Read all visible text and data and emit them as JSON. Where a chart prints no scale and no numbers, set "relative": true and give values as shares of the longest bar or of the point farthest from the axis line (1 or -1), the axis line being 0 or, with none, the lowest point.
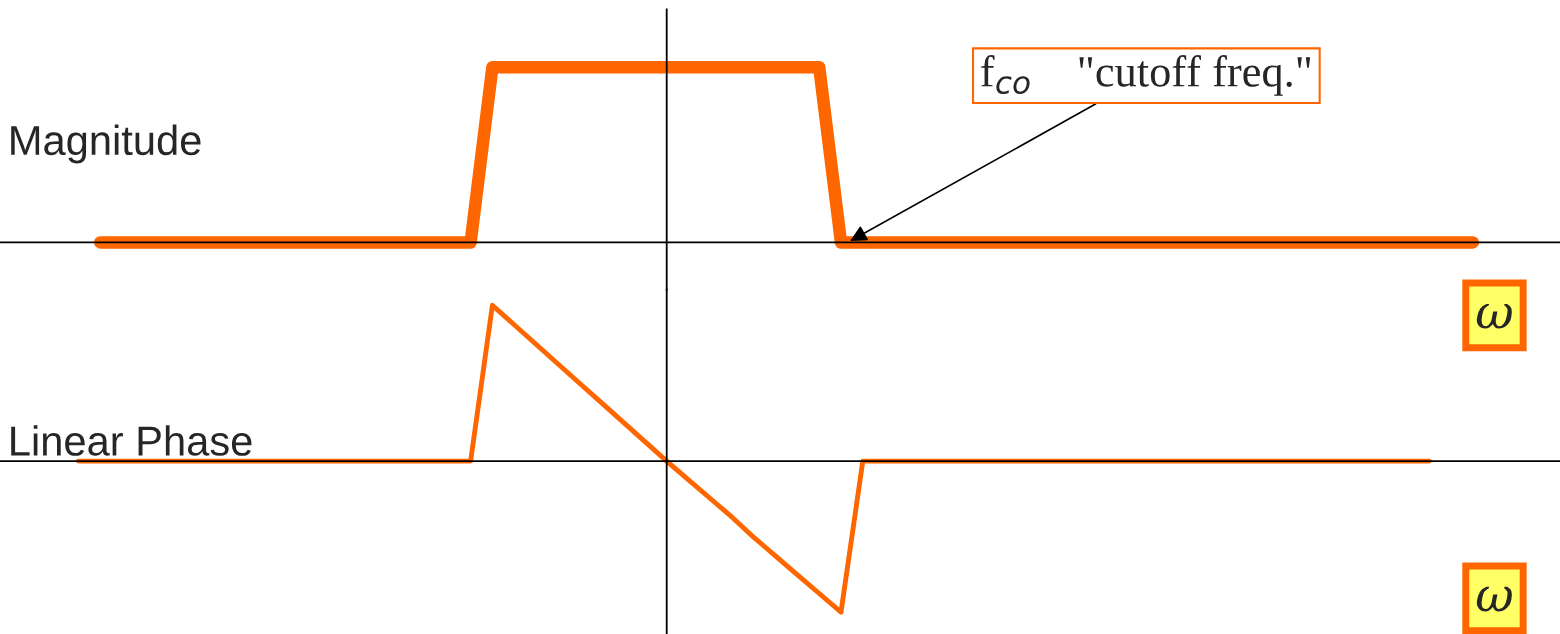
{
  "chart_data": [
    {
      "type": "line",
      "relative": true,
      "color": "#ff6600",
      "ylabel": "Magnitude",
      "xlabel": "ω",
      "categories": [
        null,
        null,
        null,
        null,
        null,
        null,
        null,
        null,
        null,
        null,
        null,
        null,
        null,
        null,
        null,
        null,
        null,
        null,
        null,
        null,
        null,
        null,
        null,
        null,
        null,
        null,
        null,
        null,
        null,
        null,
        null,
        null,
        null,
        null,
        null,
        null,
        null,
        null,
        null,
        null,
        null,
        null,
        null,
        null,
        null,
        null,
        null,
        null,
        null,
        null,
        null,
        null,
        null,
        null,
        null,
        null,
        null,
        null,
        null,
        null,
        null,
        null,
        null,
        null,
        null,
        null
      ],
      "values": [
        null,
        0,
        0,
        0,
        0,
        0,
        0,
        0,
        0,
        0,
        0,
        0,
        0,
        0,
        0,
        0,
        0,
        0,
        0,
        1,
        1,
        1,
        1,
        1,
        1,
        1,
        1,
        1,
        1,
        1,
        1,
        1,
        1,
        1,
        1,
        0,
        0,
        0,
        0,
        0,
        0,
        0,
        0,
        0,
        0,
        0,
        0,
        0,
        0,
        0,
        0,
        0,
        0,
        0,
        0,
        0,
        0,
        0,
        0,
        0,
        0,
        0,
        0,
        0,
        0,
        null
      ],
      "annotations": [
        "f$_{co}$    \"cutoff freq.\""
      ]
    },
    {
      "type": "line",
      "relative": true,
      "color": "#ff6600",
      "ylabel": "Linear Phase",
      "xlabel": "ω",
      "categories": [
        null,
        null,
        null,
        null,
        null,
        null,
        null,
        null,
        null,
        null,
        null,
        null,
        null,
        null,
        null,
        null,
        null,
        null,
        null,
        null,
        null,
        null,
        null,
        null,
        null,
        null,
        null,
        null,
        null,
        null,
        null,
        null,
        null,
        null,
        null,
        null,
        null,
        null,
        null,
        null,
        null,
        null,
        null,
        null,
        null,
        null,
        null,
        null,
        null,
        null,
        null,
        null,
        null,
        null,
        null,
        null,
        null,
        null,
        null,
        null,
        null,
        null,
        null,
        null,
        null,
        null
      ],
      "values": [
        0,
        0,
        0,
        0,
        0,
        0,
        0,
        0,
        0,
        0,
        0,
        0,
        0,
        0,
        0,
        0,
        0,
        0,
        0,
        1,
        0.875,
        0.75,
        0.625,
        0.5,
        0.375,
        0.25,
        0.125,
        0,
        -0.12,
        -0.24,
        -0.36,
        -0.49,
        -0.61,
        -0.73,
        -0.85,
        -0.97,
        0,
        0,
        0,
        0,
        0,
        0,
        0,
        0,
        0,
        0,
        0,
        0,
        0,
        0,
        0,
        0,
        0,
        0,
        0,
        0,
        0,
        0,
        0,
        0,
        0,
        0,
        0,
        null,
        null,
        null
      ]
    }
  ]
}
